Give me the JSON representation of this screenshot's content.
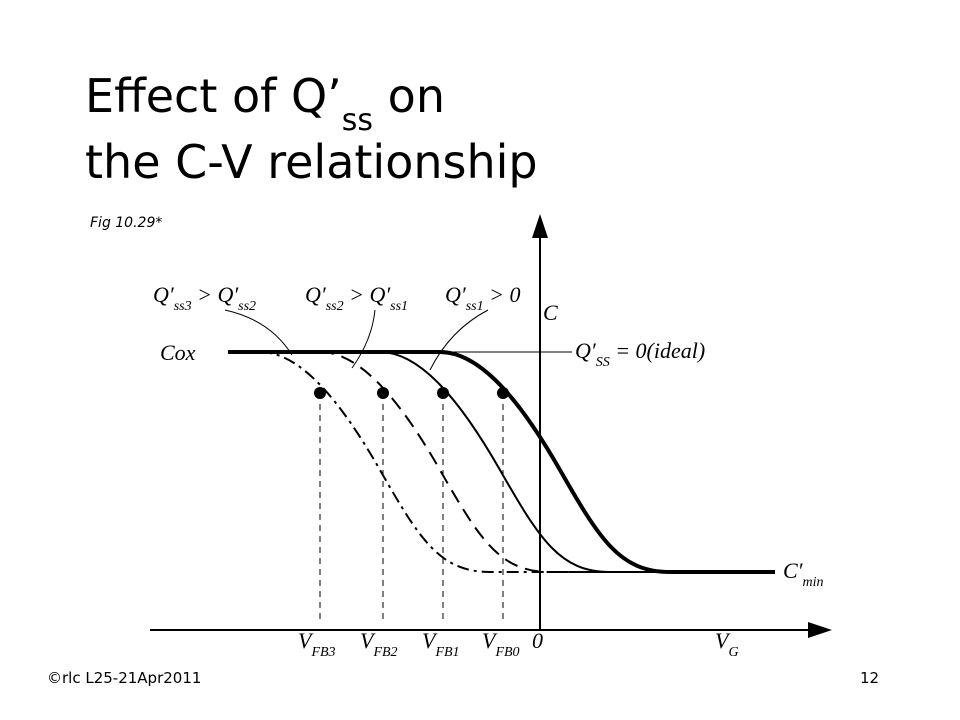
{
  "title": {
    "line1": [
      {
        "t": "Effect of Q’"
      },
      {
        "sub": "ss"
      },
      {
        "t": " on"
      }
    ],
    "line2": [
      {
        "t": "the C-V relationship"
      }
    ]
  },
  "figure_ref": "Fig 10.29*",
  "diagram": {
    "labels": {
      "q3": [
        {
          "t": "Q′"
        },
        {
          "sub": "ss3"
        },
        {
          "t": " > Q′"
        },
        {
          "sub": "ss2"
        }
      ],
      "q2": [
        {
          "t": "Q′"
        },
        {
          "sub": "ss2"
        },
        {
          "t": " > Q′"
        },
        {
          "sub": "ss1"
        }
      ],
      "q1": [
        {
          "t": "Q′"
        },
        {
          "sub": "ss1"
        },
        {
          "t": " > 0"
        }
      ],
      "ideal": [
        {
          "t": "Q′"
        },
        {
          "sub": "SS"
        },
        {
          "t": " = 0(ideal)"
        }
      ],
      "c_axis": [
        {
          "t": "C"
        }
      ],
      "cox": [
        {
          "t": "Cox"
        }
      ],
      "cmin": [
        {
          "t": "C′"
        },
        {
          "sub": "min"
        }
      ],
      "vfb3": [
        {
          "t": "V"
        },
        {
          "sub": "FB3"
        }
      ],
      "vfb2": [
        {
          "t": "V"
        },
        {
          "sub": "FB2"
        }
      ],
      "vfb1": [
        {
          "t": "V"
        },
        {
          "sub": "FB1"
        }
      ],
      "vfb0": [
        {
          "t": "V"
        },
        {
          "sub": "FB0"
        }
      ],
      "zero": [
        {
          "t": "0"
        }
      ],
      "vg_axis": [
        {
          "t": "V"
        },
        {
          "sub": "G"
        }
      ]
    }
  },
  "footer": {
    "left": "©rlc L25-21Apr2011",
    "page": "12"
  }
}
